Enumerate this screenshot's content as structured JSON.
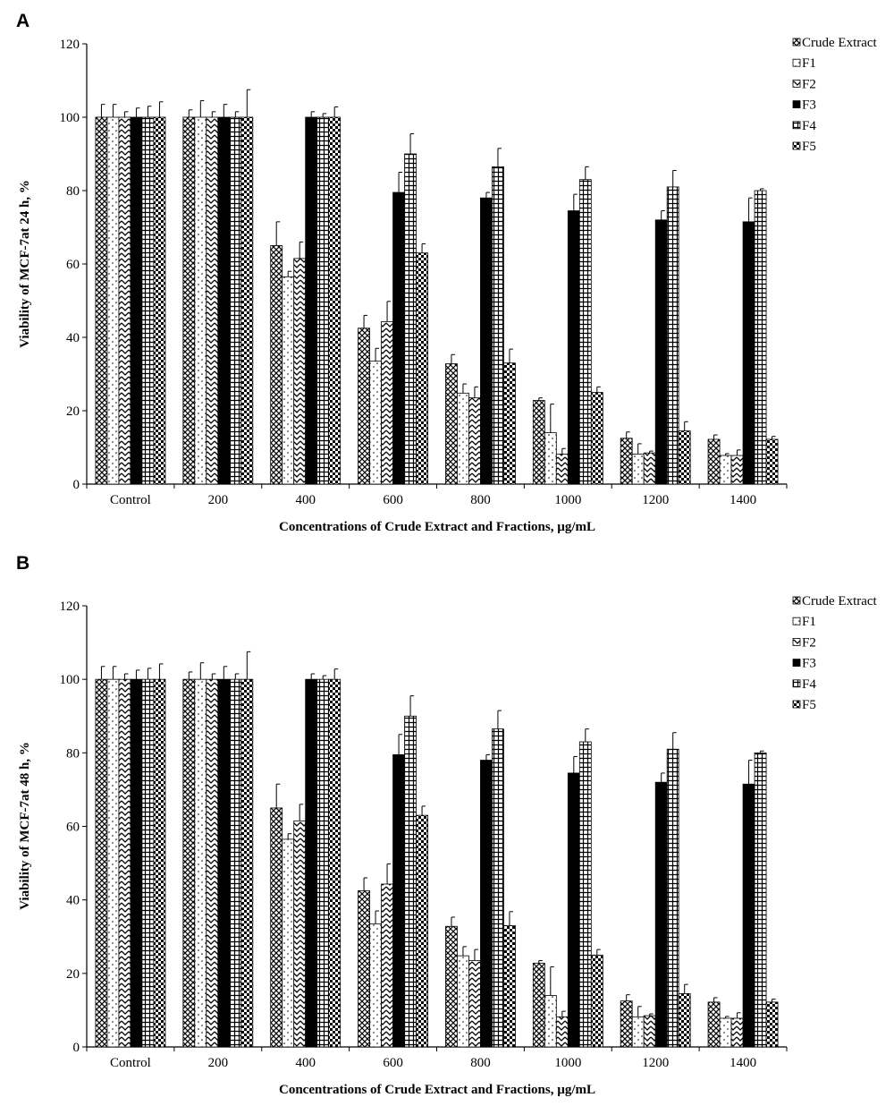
{
  "chart_data": [
    {
      "panel": "A",
      "type": "bar",
      "categories": [
        "Control",
        "200",
        "400",
        "600",
        "800",
        "1000",
        "1200",
        "1400"
      ],
      "xlabel": "Concentrations of Crude Extract and Fractions, µg/mL",
      "ylabel": "Viability of MCF-7at 24 h, %",
      "ylim": [
        0,
        120
      ],
      "yticks": [
        0,
        20,
        40,
        60,
        80,
        100,
        120
      ],
      "legend_position": "top-right",
      "series": [
        {
          "name": "Crude Extract",
          "pattern": "crosshatch",
          "values": [
            100,
            100,
            65,
            42.5,
            32.8,
            22.8,
            12.5,
            12.2
          ],
          "errors": [
            3.5,
            2,
            6.5,
            3.5,
            2.5,
            0.7,
            1.7,
            1.2
          ]
        },
        {
          "name": "F1",
          "pattern": "dots",
          "values": [
            100,
            100,
            56.5,
            33.5,
            24.8,
            14,
            8.2,
            7.8
          ],
          "errors": [
            3.5,
            4.5,
            1.5,
            3.5,
            2.5,
            7.8,
            2.8,
            0.5
          ]
        },
        {
          "name": "F2",
          "pattern": "zigzag",
          "values": [
            100,
            100,
            61.5,
            44.3,
            23.5,
            8.2,
            8.5,
            7.8
          ],
          "errors": [
            1.5,
            1.5,
            4.5,
            5.5,
            3,
            1.5,
            0.5,
            1.5
          ]
        },
        {
          "name": "F3",
          "pattern": "solid",
          "values": [
            100,
            100,
            100,
            79.5,
            78,
            74.5,
            72,
            71.5
          ],
          "errors": [
            2.5,
            3.5,
            1.5,
            5.5,
            1.5,
            4.5,
            2.5,
            6.5
          ]
        },
        {
          "name": "F4",
          "pattern": "grid",
          "values": [
            100,
            100,
            100,
            90,
            86.5,
            83,
            81,
            80
          ],
          "errors": [
            3,
            1.5,
            1,
            5.5,
            5,
            3.5,
            4.5,
            0.5
          ]
        },
        {
          "name": "F5",
          "pattern": "checker",
          "values": [
            100,
            100,
            100,
            63,
            33,
            25,
            14.5,
            12.2
          ],
          "errors": [
            4.2,
            7.5,
            2.8,
            2.5,
            3.8,
            1.5,
            2.5,
            0.8
          ]
        }
      ]
    },
    {
      "panel": "B",
      "type": "bar",
      "categories": [
        "Control",
        "200",
        "400",
        "600",
        "800",
        "1000",
        "1200",
        "1400"
      ],
      "xlabel": "Concentrations of Crude Extract and Fractions, µg/mL",
      "ylabel": "Viability of MCF-7at 48 h, %",
      "ylim": [
        0,
        120
      ],
      "yticks": [
        0,
        20,
        40,
        60,
        80,
        100,
        120
      ],
      "legend_position": "top-right",
      "series": [
        {
          "name": "Crude Extract",
          "pattern": "crosshatch",
          "values": [
            100,
            100,
            65,
            42.5,
            32.8,
            22.8,
            12.5,
            12.2
          ],
          "errors": [
            3.5,
            2,
            6.5,
            3.5,
            2.5,
            0.7,
            1.7,
            1.2
          ]
        },
        {
          "name": "F1",
          "pattern": "dots",
          "values": [
            100,
            100,
            56.5,
            33.5,
            24.8,
            14,
            8.2,
            7.8
          ],
          "errors": [
            3.5,
            4.5,
            1.5,
            3.5,
            2.5,
            7.8,
            2.8,
            0.5
          ]
        },
        {
          "name": "F2",
          "pattern": "zigzag",
          "values": [
            100,
            100,
            61.5,
            44.3,
            23.5,
            8.2,
            8.5,
            7.8
          ],
          "errors": [
            1.5,
            1.5,
            4.5,
            5.5,
            3,
            1.5,
            0.5,
            1.5
          ]
        },
        {
          "name": "F3",
          "pattern": "solid",
          "values": [
            100,
            100,
            100,
            79.5,
            78,
            74.5,
            72,
            71.5
          ],
          "errors": [
            2.5,
            3.5,
            1.5,
            5.5,
            1.5,
            4.5,
            2.5,
            6.5
          ]
        },
        {
          "name": "F4",
          "pattern": "grid",
          "values": [
            100,
            100,
            100,
            90,
            86.5,
            83,
            81,
            80
          ],
          "errors": [
            3,
            1.5,
            1,
            5.5,
            5,
            3.5,
            4.5,
            0.5
          ]
        },
        {
          "name": "F5",
          "pattern": "checker",
          "values": [
            100,
            100,
            100,
            63,
            33,
            25,
            14.5,
            12.2
          ],
          "errors": [
            4.2,
            7.5,
            2.8,
            2.5,
            3.8,
            1.5,
            2.5,
            0.8
          ]
        }
      ]
    }
  ]
}
